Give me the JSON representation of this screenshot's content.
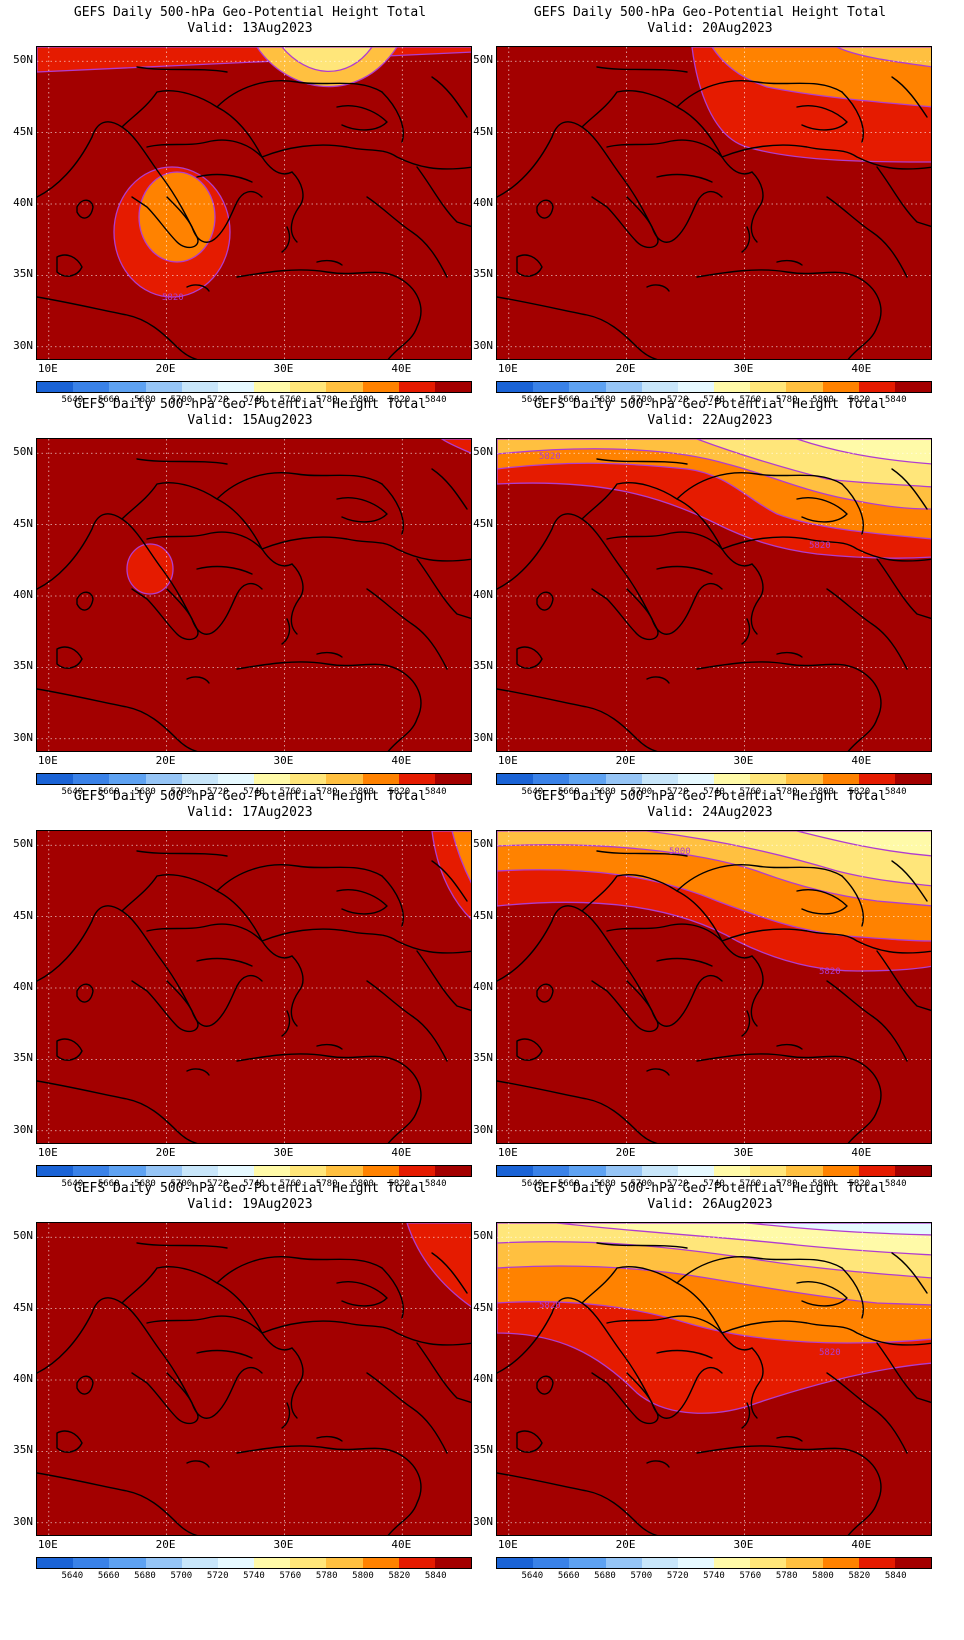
{
  "panel_title": "GEFS Daily 500-hPa Geo-Potential Height Total",
  "valid_prefix": "Valid:",
  "lat_labels": [
    "50N",
    "45N",
    "40N",
    "35N",
    "30N"
  ],
  "lat_values": [
    50,
    45,
    40,
    35,
    30
  ],
  "lon_labels": [
    "10E",
    "20E",
    "30E",
    "40E"
  ],
  "lon_values": [
    10,
    20,
    30,
    40
  ],
  "map_extent": {
    "lon": [
      9,
      46
    ],
    "lat": [
      29,
      51
    ]
  },
  "colorbar": {
    "labels": [
      "5640",
      "5660",
      "5680",
      "5700",
      "5720",
      "5740",
      "5760",
      "5780",
      "5800",
      "5820",
      "5840"
    ],
    "colors": [
      "#1a63d6",
      "#3a82e8",
      "#5ea2f2",
      "#96c5f6",
      "#c8e6fa",
      "#e6f9ff",
      "#fffaa8",
      "#ffe67a",
      "#ffc040",
      "#ff8200",
      "#e51b00",
      "#a30000"
    ]
  },
  "contour_color": "#b03cd0",
  "panels": [
    {
      "valid": "13Aug2023",
      "contour_labels": [
        "5820"
      ]
    },
    {
      "valid": "20Aug2023",
      "contour_labels": []
    },
    {
      "valid": "15Aug2023",
      "contour_labels": []
    },
    {
      "valid": "22Aug2023",
      "contour_labels": [
        "5820",
        "5820"
      ]
    },
    {
      "valid": "17Aug2023",
      "contour_labels": []
    },
    {
      "valid": "24Aug2023",
      "contour_labels": [
        "5800",
        "5820"
      ]
    },
    {
      "valid": "19Aug2023",
      "contour_labels": []
    },
    {
      "valid": "26Aug2023",
      "contour_labels": [
        "5820",
        "5820"
      ]
    }
  ]
}
